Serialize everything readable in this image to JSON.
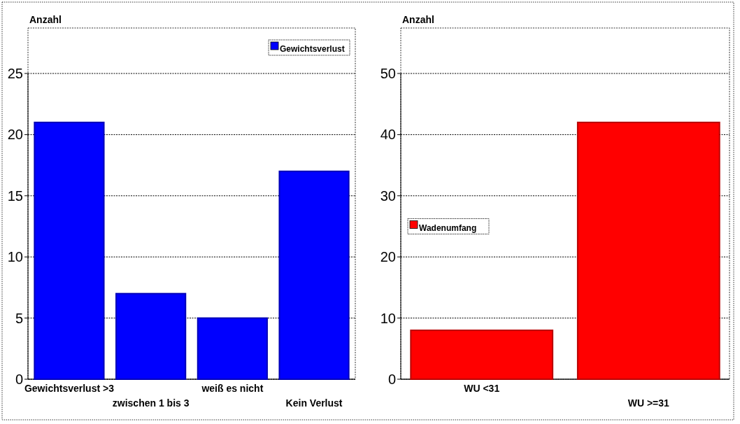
{
  "chart_data": [
    {
      "type": "bar",
      "ylabel": "Anzahl",
      "categories": [
        "Gewichtsverlust >3",
        "zwischen 1 bis 3",
        "weiß es nicht",
        "Kein Verlust"
      ],
      "series": [
        {
          "name": "Gewichtsverlust",
          "color": "#0000ff",
          "values": [
            21,
            7,
            5,
            17
          ]
        }
      ],
      "ylim": [
        0,
        25
      ],
      "yticks": [
        0,
        5,
        10,
        15,
        20,
        25
      ],
      "grid": true,
      "legend": "top right"
    },
    {
      "type": "bar",
      "ylabel": "Anzahl",
      "categories": [
        "WU <31",
        "WU >=31"
      ],
      "series": [
        {
          "name": "Wadenumfang",
          "color": "#ff0000",
          "values": [
            8,
            42
          ]
        }
      ],
      "ylim": [
        0,
        50
      ],
      "yticks": [
        0,
        10,
        20,
        30,
        40,
        50
      ],
      "grid": true,
      "legend": "left"
    }
  ]
}
